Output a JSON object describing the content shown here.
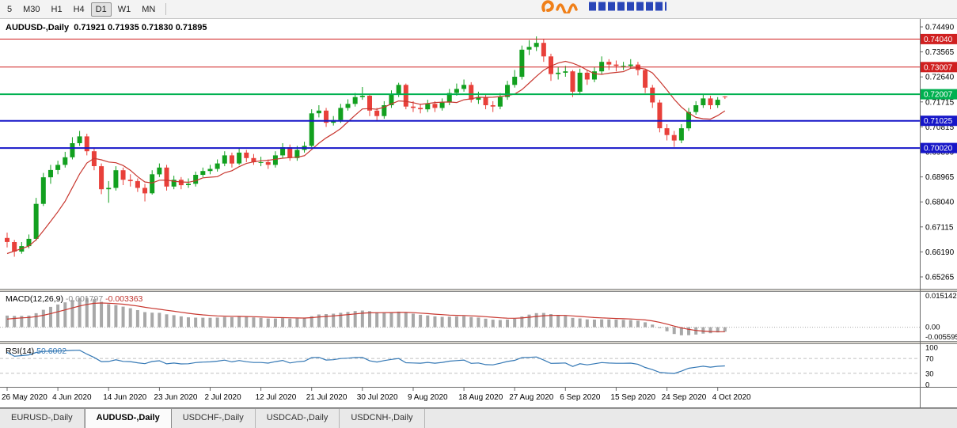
{
  "toolbar": {
    "timeframes": [
      {
        "label": "5",
        "active": false
      },
      {
        "label": "M30",
        "active": false
      },
      {
        "label": "H1",
        "active": false
      },
      {
        "label": "H4",
        "active": false
      },
      {
        "label": "D1",
        "active": true
      },
      {
        "label": "W1",
        "active": false
      },
      {
        "label": "MN",
        "active": false
      }
    ]
  },
  "chart": {
    "title": {
      "symbol": "AUDUSD-,Daily",
      "open": "0.71921",
      "high": "0.71935",
      "low": "0.71830",
      "close": "0.71895"
    }
  },
  "chart_data": {
    "type": "candlestick",
    "symbol": "AUDUSD-,Daily",
    "timeframe": "Daily",
    "price_axis": {
      "labels": [
        "0.74490",
        "0.73565",
        "0.72640",
        "0.71715",
        "0.70815",
        "0.69890",
        "0.68965",
        "0.68040",
        "0.67115",
        "0.66190",
        "0.65265"
      ],
      "top": 0.7449,
      "bottom": 0.65265
    },
    "x_axis": {
      "labels": [
        "26 May 2020",
        "4 Jun 2020",
        "14 Jun 2020",
        "23 Jun 2020",
        "2 Jul 2020",
        "12 Jul 2020",
        "21 Jul 2020",
        "30 Jul 2020",
        "9 Aug 2020",
        "18 Aug 2020",
        "27 Aug 2020",
        "6 Sep 2020",
        "15 Sep 2020",
        "24 Sep 2020",
        "4 Oct 2020"
      ],
      "step": 7
    },
    "levels": [
      {
        "value": 0.7404,
        "label": "0.74040",
        "color": "#d02020",
        "width": 1
      },
      {
        "value": 0.73007,
        "label": "0.73007",
        "color": "#d02020",
        "width": 1
      },
      {
        "value": 0.72007,
        "label": "0.72007",
        "color": "#00b050",
        "width": 2
      },
      {
        "value": 0.71025,
        "label": "0.71025",
        "color": "#1616c8",
        "width": 2
      },
      {
        "value": 0.7002,
        "label": "0.70020",
        "color": "#1616c8",
        "width": 2
      }
    ],
    "colors": {
      "bull": "#12a01f",
      "bear": "#e8403a"
    },
    "overlays": [
      {
        "name": "ma-fast-line",
        "period": 8,
        "color": "#c8372f"
      },
      {
        "name": "ma-slow-line",
        "period": 17,
        "color": "#1c2f80"
      }
    ],
    "indicators": [
      {
        "name": "MACD(12,26,9)",
        "main_value": "-0.001797",
        "signal_value": "-0.003363",
        "axis_labels": [
          "0.015142",
          "0.00",
          "-0.005595"
        ],
        "max": 0.015142,
        "min": -0.005595,
        "bar_color": "#a8a8a8",
        "signal_color": "#c8372f"
      },
      {
        "name": "RSI(14)",
        "value": "50.6002",
        "axis_labels": [
          "100",
          "70",
          "30",
          "0"
        ],
        "levels": [
          70,
          30
        ],
        "line_color": "#3478b5"
      }
    ],
    "warmup_closes": [
      0.644,
      0.6455,
      0.647,
      0.6455,
      0.648,
      0.6505,
      0.653,
      0.651,
      0.6545,
      0.657,
      0.659,
      0.661,
      0.6625,
      0.6645,
      0.666
    ],
    "candles": [
      [
        0.667,
        0.669,
        0.6635,
        0.6655
      ],
      [
        0.6655,
        0.6663,
        0.6601,
        0.662
      ],
      [
        0.662,
        0.6655,
        0.6612,
        0.664
      ],
      [
        0.664,
        0.6683,
        0.6632,
        0.6667
      ],
      [
        0.6667,
        0.6818,
        0.666,
        0.6796
      ],
      [
        0.6796,
        0.691,
        0.6788,
        0.6894
      ],
      [
        0.6894,
        0.694,
        0.687,
        0.6921
      ],
      [
        0.6921,
        0.6955,
        0.6905,
        0.694
      ],
      [
        0.694,
        0.6988,
        0.693,
        0.6968
      ],
      [
        0.6968,
        0.7042,
        0.696,
        0.702
      ],
      [
        0.702,
        0.7065,
        0.701,
        0.7045
      ],
      [
        0.7045,
        0.7055,
        0.6975,
        0.699
      ],
      [
        0.699,
        0.7,
        0.692,
        0.6935
      ],
      [
        0.6935,
        0.6945,
        0.6832,
        0.685
      ],
      [
        0.685,
        0.688,
        0.68,
        0.6855
      ],
      [
        0.6855,
        0.6935,
        0.6845,
        0.692
      ],
      [
        0.692,
        0.693,
        0.6865,
        0.6885
      ],
      [
        0.6885,
        0.6905,
        0.686,
        0.688
      ],
      [
        0.688,
        0.689,
        0.684,
        0.6855
      ],
      [
        0.6855,
        0.687,
        0.6805,
        0.6835
      ],
      [
        0.6835,
        0.692,
        0.683,
        0.6905
      ],
      [
        0.6905,
        0.6945,
        0.6895,
        0.693
      ],
      [
        0.693,
        0.694,
        0.6845,
        0.686
      ],
      [
        0.686,
        0.69,
        0.685,
        0.6885
      ],
      [
        0.6885,
        0.6895,
        0.685,
        0.6865
      ],
      [
        0.6865,
        0.689,
        0.6855,
        0.687
      ],
      [
        0.687,
        0.6915,
        0.686,
        0.6903
      ],
      [
        0.6903,
        0.693,
        0.6895,
        0.6917
      ],
      [
        0.6917,
        0.694,
        0.6905,
        0.6925
      ],
      [
        0.6925,
        0.696,
        0.6915,
        0.6945
      ],
      [
        0.6945,
        0.699,
        0.6935,
        0.6975
      ],
      [
        0.6975,
        0.6985,
        0.693,
        0.6945
      ],
      [
        0.6945,
        0.7,
        0.694,
        0.6985
      ],
      [
        0.6985,
        0.6995,
        0.695,
        0.6965
      ],
      [
        0.6965,
        0.698,
        0.694,
        0.695
      ],
      [
        0.695,
        0.697,
        0.6935,
        0.695
      ],
      [
        0.695,
        0.696,
        0.6925,
        0.694
      ],
      [
        0.694,
        0.699,
        0.693,
        0.6975
      ],
      [
        0.6975,
        0.702,
        0.6965,
        0.7005
      ],
      [
        0.7005,
        0.7015,
        0.6955,
        0.6965
      ],
      [
        0.6965,
        0.701,
        0.6955,
        0.6995
      ],
      [
        0.6995,
        0.7025,
        0.6985,
        0.701
      ],
      [
        0.701,
        0.7145,
        0.7005,
        0.713
      ],
      [
        0.713,
        0.716,
        0.7115,
        0.714
      ],
      [
        0.714,
        0.715,
        0.708,
        0.7095
      ],
      [
        0.7095,
        0.712,
        0.7085,
        0.7105
      ],
      [
        0.7105,
        0.7165,
        0.7095,
        0.715
      ],
      [
        0.715,
        0.7182,
        0.714,
        0.7165
      ],
      [
        0.7165,
        0.7205,
        0.7155,
        0.719
      ],
      [
        0.719,
        0.7227,
        0.718,
        0.7195
      ],
      [
        0.7195,
        0.72,
        0.712,
        0.714
      ],
      [
        0.714,
        0.715,
        0.71,
        0.712
      ],
      [
        0.712,
        0.7175,
        0.711,
        0.716
      ],
      [
        0.716,
        0.7215,
        0.715,
        0.72
      ],
      [
        0.72,
        0.7243,
        0.719,
        0.7235
      ],
      [
        0.7235,
        0.724,
        0.7145,
        0.7155
      ],
      [
        0.7155,
        0.7175,
        0.7135,
        0.715
      ],
      [
        0.715,
        0.7165,
        0.713,
        0.7145
      ],
      [
        0.7145,
        0.718,
        0.7135,
        0.7165
      ],
      [
        0.7165,
        0.7175,
        0.7135,
        0.715
      ],
      [
        0.715,
        0.7185,
        0.714,
        0.717
      ],
      [
        0.717,
        0.722,
        0.716,
        0.7205
      ],
      [
        0.7205,
        0.724,
        0.7195,
        0.722
      ],
      [
        0.722,
        0.7255,
        0.721,
        0.7235
      ],
      [
        0.7235,
        0.7245,
        0.717,
        0.718
      ],
      [
        0.718,
        0.721,
        0.7165,
        0.719
      ],
      [
        0.719,
        0.72,
        0.7145,
        0.716
      ],
      [
        0.716,
        0.7175,
        0.7135,
        0.7155
      ],
      [
        0.7155,
        0.7205,
        0.7145,
        0.719
      ],
      [
        0.719,
        0.725,
        0.718,
        0.7235
      ],
      [
        0.7235,
        0.729,
        0.7225,
        0.7265
      ],
      [
        0.7265,
        0.738,
        0.7255,
        0.7365
      ],
      [
        0.7365,
        0.74,
        0.7345,
        0.7375
      ],
      [
        0.7375,
        0.7414,
        0.736,
        0.739
      ],
      [
        0.739,
        0.7405,
        0.732,
        0.734
      ],
      [
        0.734,
        0.735,
        0.725,
        0.7275
      ],
      [
        0.7275,
        0.73,
        0.7255,
        0.728
      ],
      [
        0.728,
        0.7305,
        0.7265,
        0.7285
      ],
      [
        0.7285,
        0.729,
        0.719,
        0.721
      ],
      [
        0.721,
        0.7295,
        0.72,
        0.728
      ],
      [
        0.728,
        0.729,
        0.7235,
        0.7255
      ],
      [
        0.7255,
        0.73,
        0.7245,
        0.7285
      ],
      [
        0.7285,
        0.734,
        0.7275,
        0.732
      ],
      [
        0.732,
        0.733,
        0.729,
        0.731
      ],
      [
        0.731,
        0.7325,
        0.7285,
        0.7305
      ],
      [
        0.7305,
        0.732,
        0.729,
        0.7305
      ],
      [
        0.7305,
        0.733,
        0.7295,
        0.731
      ],
      [
        0.731,
        0.732,
        0.727,
        0.729
      ],
      [
        0.729,
        0.7295,
        0.7205,
        0.7225
      ],
      [
        0.7225,
        0.7235,
        0.715,
        0.717
      ],
      [
        0.717,
        0.718,
        0.706,
        0.7075
      ],
      [
        0.7075,
        0.709,
        0.703,
        0.705
      ],
      [
        0.705,
        0.7065,
        0.7006,
        0.703
      ],
      [
        0.703,
        0.709,
        0.702,
        0.7075
      ],
      [
        0.7075,
        0.715,
        0.7065,
        0.7135
      ],
      [
        0.7135,
        0.7175,
        0.7125,
        0.716
      ],
      [
        0.716,
        0.72,
        0.715,
        0.7185
      ],
      [
        0.7185,
        0.7195,
        0.7145,
        0.716
      ],
      [
        0.716,
        0.719,
        0.715,
        0.718
      ],
      [
        0.71921,
        0.71935,
        0.7183,
        0.71895
      ]
    ]
  },
  "bottom_tabs": [
    {
      "label": "EURUSD-,Daily",
      "active": false
    },
    {
      "label": "AUDUSD-,Daily",
      "active": true
    },
    {
      "label": "USDCHF-,Daily",
      "active": false
    },
    {
      "label": "USDCAD-,Daily",
      "active": false
    },
    {
      "label": "USDCNH-,Daily",
      "active": false
    }
  ]
}
